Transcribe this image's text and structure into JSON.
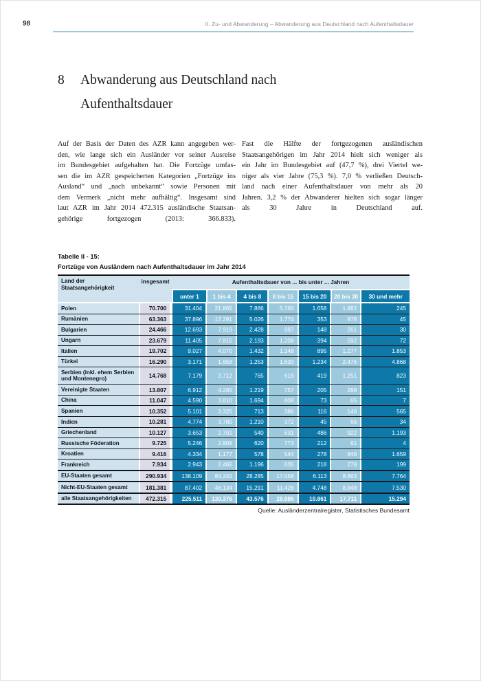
{
  "page": {
    "number": "98",
    "running_header": "II. Zu- und Abwanderung – Abwanderung aus Deutschland nach Aufenthaltsdauer"
  },
  "heading": {
    "number": "8",
    "line1": "Abwanderung aus Deutschland nach",
    "line2": "Aufenthaltsdauer"
  },
  "body": {
    "left_lines": [
      "Auf der Basis der Daten des AZR kann angegeben wer-",
      "den, wie lange sich ein Ausländer vor seiner Ausreise",
      "im Bundesgebiet aufgehalten hat. Die Fortzüge umfas-",
      "sen die im AZR gespeicherten Kategorien „Fortzüge ins",
      "Ausland“ und „nach unbekannt“ sowie Personen mit",
      "dem Vermerk „nicht mehr aufhältig“. Insgesamt sind",
      "laut AZR im Jahr 2014 472.315 ausländische Staatsan-",
      "gehörige fortgezogen (2013: 366.833)."
    ],
    "right_lines": [
      "Fast die Hälfte der fortgezogenen ausländischen",
      "Staatsangehörigen im Jahr 2014 hielt sich weniger als",
      "ein Jahr im Bundesgebiet auf (47,7 %), drei Viertel we-",
      "niger als vier Jahre (75,3 %). 7,0 % verließen Deutsch-",
      "land nach einer Aufenthaltsdauer von mehr als 20",
      "Jahren. 3,2 % der Abwanderer hielten sich sogar länger",
      "als 30 Jahre in Deutschland auf."
    ]
  },
  "table": {
    "caption_line1": "Tabelle II - 15:",
    "caption_line2": "Fortzüge von Ausländern nach Aufenthaltsdauer im Jahr 2014",
    "header": {
      "label": "Land der\nStaatsangehörigkeit",
      "insgesamt": "insgesamt",
      "span": "Aufenthaltsdauer von ... bis unter ... Jahren",
      "durations": [
        "unter 1",
        "1 bis 4",
        "4 bis 8",
        "8 bis 15",
        "15 bis 20",
        "20 bis 30",
        "30 und mehr"
      ]
    },
    "rows": [
      {
        "label": "Polen",
        "insgesamt": "70.700",
        "values": [
          "31.404",
          "21.865",
          "7.886",
          "5.760",
          "1.658",
          "1.882",
          "245"
        ]
      },
      {
        "label": "Rumänien",
        "insgesamt": "63.363",
        "values": [
          "37.896",
          "17.291",
          "5.026",
          "1.774",
          "353",
          "978",
          "45"
        ]
      },
      {
        "label": "Bulgarien",
        "insgesamt": "24.466",
        "values": [
          "12.693",
          "7.919",
          "2.428",
          "987",
          "148",
          "261",
          "30"
        ]
      },
      {
        "label": "Ungarn",
        "insgesamt": "23.679",
        "values": [
          "11.405",
          "7.815",
          "2.193",
          "1.208",
          "394",
          "592",
          "72"
        ]
      },
      {
        "label": "Italien",
        "insgesamt": "19.702",
        "values": [
          "9.027",
          "4.070",
          "1.432",
          "1.148",
          "895",
          "1.277",
          "1.853"
        ]
      },
      {
        "label": "Türkei",
        "insgesamt": "16.290",
        "values": [
          "3.171",
          "1.658",
          "1.253",
          "1.630",
          "1.234",
          "2.476",
          "4.868"
        ]
      },
      {
        "label": "Serbien (inkl. ehem Serbien\nund Montenegro)",
        "insgesamt": "14.768",
        "values": [
          "7.179",
          "3.712",
          "765",
          "619",
          "419",
          "1.251",
          "823"
        ]
      },
      {
        "label": "Vereinigte Staaten",
        "insgesamt": "13.807",
        "values": [
          "6.912",
          "4.265",
          "1.219",
          "757",
          "205",
          "298",
          "151"
        ]
      },
      {
        "label": "China",
        "insgesamt": "11.047",
        "values": [
          "4.590",
          "3.810",
          "1.694",
          "808",
          "73",
          "65",
          "7"
        ]
      },
      {
        "label": "Spanien",
        "insgesamt": "10.352",
        "values": [
          "5.101",
          "3.325",
          "713",
          "386",
          "116",
          "146",
          "565"
        ]
      },
      {
        "label": "Indien",
        "insgesamt": "10.281",
        "values": [
          "4.774",
          "3.780",
          "1.210",
          "372",
          "45",
          "66",
          "34"
        ]
      },
      {
        "label": "Griechenland",
        "insgesamt": "10.127",
        "values": [
          "3.653",
          "2.702",
          "540",
          "631",
          "486",
          "922",
          "1.193"
        ]
      },
      {
        "label": "Russische Föderation",
        "insgesamt": "9.725",
        "values": [
          "5.246",
          "2.809",
          "620",
          "773",
          "212",
          "61",
          "4"
        ]
      },
      {
        "label": "Kroatien",
        "insgesamt": "9.416",
        "values": [
          "4.334",
          "1.177",
          "578",
          "544",
          "278",
          "846",
          "1.659"
        ]
      },
      {
        "label": "Frankreich",
        "insgesamt": "7.934",
        "values": [
          "2.943",
          "2.465",
          "1.196",
          "635",
          "218",
          "278",
          "199"
        ]
      }
    ],
    "summary_rows": [
      {
        "label": "EU-Staaten gesamt",
        "insgesamt": "290.934",
        "values": [
          "138.109",
          "84.242",
          "28.285",
          "17.558",
          "6.113",
          "8.863",
          "7.764"
        ]
      },
      {
        "label": "Nicht-EU-Staaten gesamt",
        "insgesamt": "181.381",
        "values": [
          "87.402",
          "46.134",
          "15.291",
          "11.428",
          "4.748",
          "8.848",
          "7.530"
        ]
      }
    ],
    "total_rows": [
      {
        "label": "alle Staatsangehörigkeiten",
        "insgesamt": "472.315",
        "values": [
          "225.511",
          "130.376",
          "43.576",
          "28.986",
          "10.861",
          "17.711",
          "15.294"
        ]
      }
    ],
    "source": "Quelle: Ausländerzentralregister, Statistisches Bundesamt"
  },
  "colors": {
    "cell_dark_blue": "#0e78a8",
    "cell_light_blue": "#9cc9dd",
    "label_column_blue": "#cfe2ee",
    "insgesamt_column_lavender": "#dcdce9",
    "header_rule_blue": "#9ec9dc",
    "table_rule_black": "#15151c",
    "running_header_gray": "#858e97"
  }
}
